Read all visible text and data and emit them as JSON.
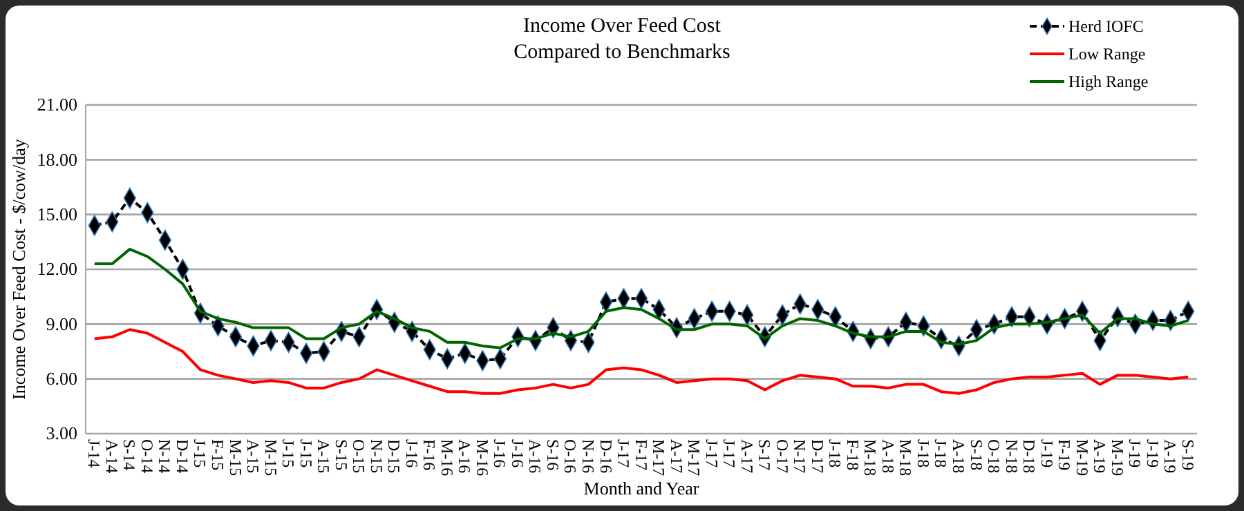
{
  "chart_data": {
    "type": "line",
    "title": "Income Over Feed Cost\nCompared to Benchmarks",
    "xlabel": "Month and Year",
    "ylabel": "Income Over Feed Cost - $/cow/day",
    "categories": [
      "J-14",
      "A-14",
      "S-14",
      "O-14",
      "N-14",
      "D-14",
      "J-15",
      "F-15",
      "M-15",
      "A-15",
      "M-15",
      "J-15",
      "J-15",
      "A-15",
      "S-15",
      "O-15",
      "N-15",
      "D-15",
      "J-16",
      "F-16",
      "M-16",
      "A-16",
      "M-16",
      "J-16",
      "J-16",
      "A-16",
      "S-16",
      "O-16",
      "N-16",
      "D-16",
      "J-17",
      "F-17",
      "M-17",
      "A-17",
      "M-17",
      "J-17",
      "J-17",
      "A-17",
      "S-17",
      "O-17",
      "N-17",
      "D-17",
      "J-18",
      "F-18",
      "M-18",
      "A-18",
      "M-18",
      "J-18",
      "J-18",
      "A-18",
      "S-18",
      "O-18",
      "N-18",
      "D-18",
      "J-19",
      "F-19",
      "M-19",
      "A-19",
      "M-19",
      "J-19",
      "J-19",
      "A-19",
      "S-19"
    ],
    "series": [
      {
        "name": "Herd IOFC",
        "color": "#000000",
        "marker": "diamond",
        "line_style": "dashed",
        "values": [
          14.4,
          14.6,
          15.9,
          15.1,
          13.6,
          12.0,
          9.6,
          8.9,
          8.3,
          7.8,
          8.1,
          8.0,
          7.4,
          7.5,
          8.6,
          8.3,
          9.8,
          9.1,
          8.6,
          7.6,
          7.1,
          7.4,
          7.0,
          7.1,
          8.3,
          8.1,
          8.8,
          8.1,
          8.0,
          10.2,
          10.4,
          10.4,
          9.8,
          8.8,
          9.3,
          9.7,
          9.7,
          9.5,
          8.3,
          9.5,
          10.1,
          9.8,
          9.4,
          8.6,
          8.2,
          8.3,
          9.1,
          8.9,
          8.2,
          7.8,
          8.7,
          9.0,
          9.4,
          9.4,
          9.0,
          9.3,
          9.7,
          8.1,
          9.4,
          9.0,
          9.2,
          9.2,
          9.7
        ]
      },
      {
        "name": "Low Range",
        "color": "#ff0000",
        "marker": "none",
        "line_style": "solid",
        "values": [
          8.2,
          8.3,
          8.7,
          8.5,
          8.0,
          7.5,
          6.5,
          6.2,
          6.0,
          5.8,
          5.9,
          5.8,
          5.5,
          5.5,
          5.8,
          6.0,
          6.5,
          6.2,
          5.9,
          5.6,
          5.3,
          5.3,
          5.2,
          5.2,
          5.4,
          5.5,
          5.7,
          5.5,
          5.7,
          6.5,
          6.6,
          6.5,
          6.2,
          5.8,
          5.9,
          6.0,
          6.0,
          5.9,
          5.4,
          5.9,
          6.2,
          6.1,
          6.0,
          5.6,
          5.6,
          5.5,
          5.7,
          5.7,
          5.3,
          5.2,
          5.4,
          5.8,
          6.0,
          6.1,
          6.1,
          6.2,
          6.3,
          5.7,
          6.2,
          6.2,
          6.1,
          6.0,
          6.1
        ]
      },
      {
        "name": "High Range",
        "color": "#006400",
        "marker": "none",
        "line_style": "solid",
        "values": [
          12.3,
          12.3,
          13.1,
          12.7,
          12.0,
          11.2,
          9.7,
          9.3,
          9.1,
          8.8,
          8.8,
          8.8,
          8.2,
          8.2,
          8.8,
          9.0,
          9.7,
          9.3,
          8.8,
          8.6,
          8.0,
          8.0,
          7.8,
          7.7,
          8.2,
          8.2,
          8.5,
          8.3,
          8.6,
          9.7,
          9.9,
          9.8,
          9.3,
          8.7,
          8.7,
          9.0,
          9.0,
          8.9,
          8.2,
          8.9,
          9.3,
          9.2,
          8.9,
          8.5,
          8.3,
          8.3,
          8.6,
          8.6,
          8.0,
          7.9,
          8.1,
          8.8,
          9.0,
          9.0,
          9.1,
          9.3,
          9.5,
          8.5,
          9.3,
          9.3,
          9.0,
          8.9,
          9.2
        ]
      }
    ],
    "ylim": [
      3,
      21
    ],
    "yticks": [
      {
        "value": 3,
        "label": "3.00"
      },
      {
        "value": 6,
        "label": "6.00"
      },
      {
        "value": 9,
        "label": "9.00"
      },
      {
        "value": 12,
        "label": "12.00"
      },
      {
        "value": 15,
        "label": "15.00"
      },
      {
        "value": 18,
        "label": "18.00"
      },
      {
        "value": 21,
        "label": "21.00"
      }
    ],
    "grid": "y",
    "legend": "top right"
  }
}
